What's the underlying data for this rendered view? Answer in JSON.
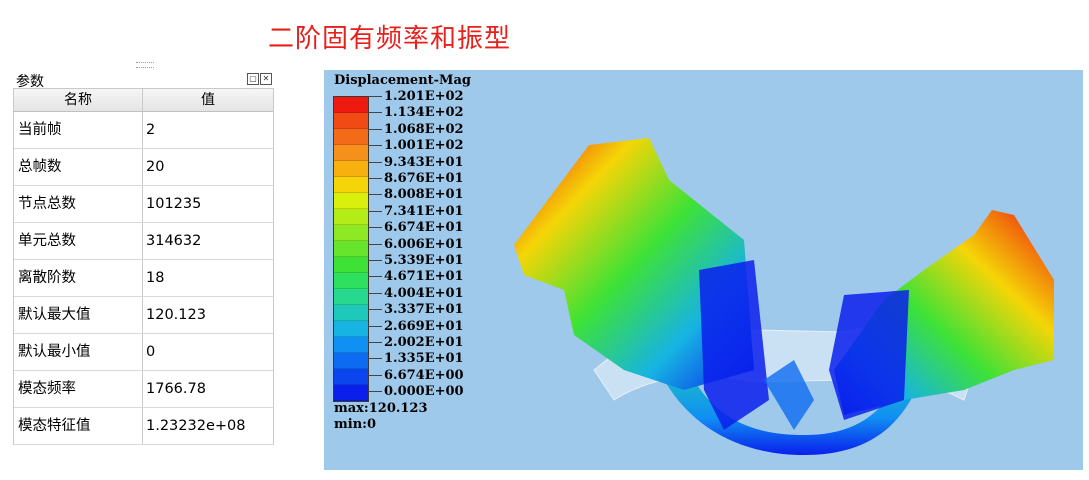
{
  "title": "二阶固有频率和振型",
  "panel": {
    "title": "参数",
    "columns": [
      "名称",
      "值"
    ],
    "rows": [
      {
        "name": "当前帧",
        "value": "2"
      },
      {
        "name": "总帧数",
        "value": "20"
      },
      {
        "name": "节点总数",
        "value": "101235"
      },
      {
        "name": "单元总数",
        "value": "314632"
      },
      {
        "name": "离散阶数",
        "value": "18"
      },
      {
        "name": "默认最大值",
        "value": "120.123"
      },
      {
        "name": "默认最小值",
        "value": "0"
      },
      {
        "name": "模态频率",
        "value": "1766.78"
      },
      {
        "name": "模态特征值",
        "value": "1.23232e+08"
      }
    ]
  },
  "viewer": {
    "legend_title": "Displacement-Mag",
    "legend_labels": [
      "1.201E+02",
      "1.134E+02",
      "1.068E+02",
      "1.001E+02",
      "9.343E+01",
      "8.676E+01",
      "8.008E+01",
      "7.341E+01",
      "6.674E+01",
      "6.006E+01",
      "5.339E+01",
      "4.671E+01",
      "4.004E+01",
      "3.337E+01",
      "2.669E+01",
      "2.002E+01",
      "1.335E+01",
      "6.674E+00",
      "0.000E+00"
    ],
    "legend_colors": [
      "#ee1a10",
      "#f24a14",
      "#f36a18",
      "#f5901a",
      "#f8b00f",
      "#f5d507",
      "#d9ef0c",
      "#b4ec18",
      "#8ee924",
      "#66e52c",
      "#3ee236",
      "#2ee060",
      "#26d98e",
      "#1ec9bb",
      "#16b3e3",
      "#1090f2",
      "#0d6bf1",
      "#0b45ee",
      "#0a1fec"
    ],
    "max_text": "max:120.123",
    "min_text": "min:0",
    "background": "#9fc9ea"
  }
}
